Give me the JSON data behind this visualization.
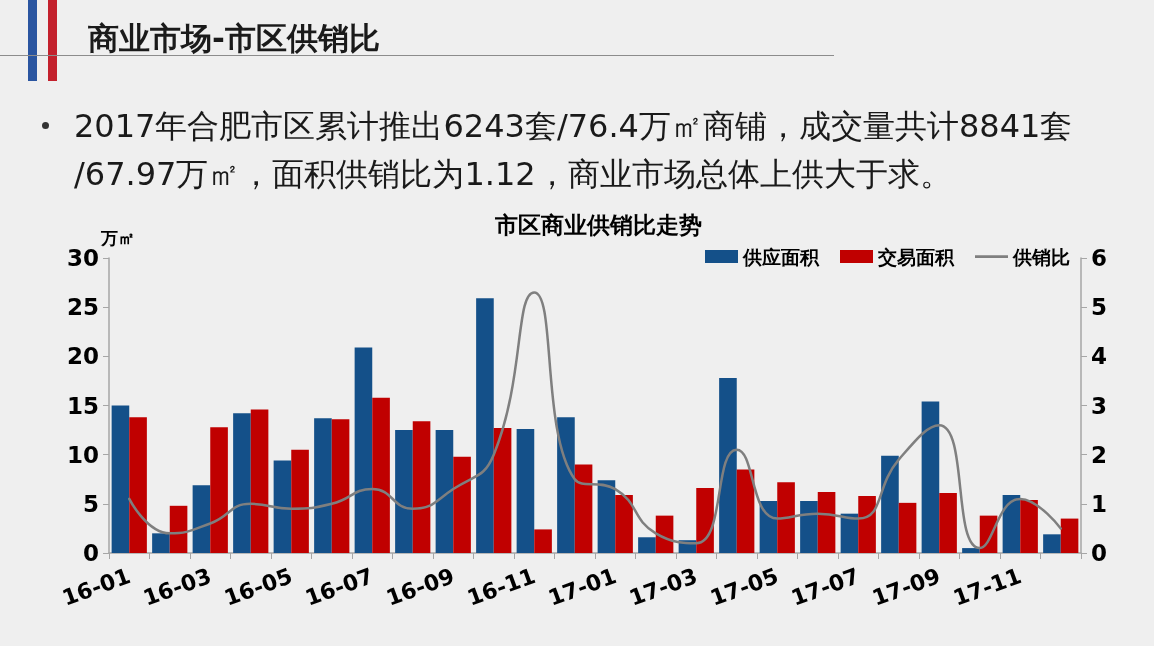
{
  "chart_data": {
    "type": "bar",
    "title": "市区商业供销比走势",
    "annotations": [
      "商业市场-市区供销比",
      "2017年合肥市区累计推出6243套/76.4万㎡商铺，成交量共计8841套/67.97万㎡，面积供销比为1.12，商业市场总体上供大于求。"
    ],
    "ylabel": "万㎡",
    "categories": [
      "16-01",
      null,
      "16-03",
      null,
      "16-05",
      null,
      "16-07",
      null,
      "16-09",
      null,
      "16-11",
      null,
      "17-01",
      null,
      "17-03",
      null,
      "17-05",
      null,
      "17-07",
      null,
      "17-09",
      null,
      "17-11",
      null
    ],
    "series": [
      {
        "name": "供应面积",
        "color": "#145089",
        "values": [
          15.0,
          2.0,
          6.9,
          14.2,
          9.4,
          13.7,
          20.9,
          12.5,
          12.5,
          25.9,
          12.6,
          13.8,
          7.4,
          1.6,
          1.3,
          17.8,
          5.3,
          5.3,
          4.0,
          9.9,
          15.4,
          0.5,
          5.9,
          1.9
        ]
      },
      {
        "name": "交易面积",
        "color": "#c00000",
        "values": [
          13.8,
          4.8,
          12.8,
          14.6,
          10.5,
          13.6,
          15.8,
          13.4,
          9.8,
          12.7,
          2.4,
          9.0,
          5.9,
          3.8,
          6.6,
          8.5,
          7.2,
          6.2,
          5.8,
          5.1,
          6.1,
          3.8,
          5.4,
          3.5
        ]
      },
      {
        "name": "供销比",
        "type": "line",
        "axis": "y2",
        "color": "#7f7f7f",
        "values": [
          1.1,
          0.4,
          0.6,
          1.0,
          0.9,
          1.0,
          1.3,
          0.9,
          1.3,
          2.0,
          5.3,
          1.5,
          1.3,
          0.4,
          0.2,
          2.1,
          0.7,
          0.8,
          0.7,
          1.9,
          2.6,
          0.1,
          1.1,
          0.5
        ]
      }
    ],
    "ylim": [
      0,
      30
    ],
    "yticks": [
      0,
      5,
      10,
      15,
      20,
      25,
      30
    ],
    "y2lim": [
      0,
      6
    ],
    "y2ticks": [
      0,
      1,
      2,
      3,
      4,
      5,
      6
    ],
    "legend": "top right",
    "marker": "none",
    "line_style": "solid"
  }
}
